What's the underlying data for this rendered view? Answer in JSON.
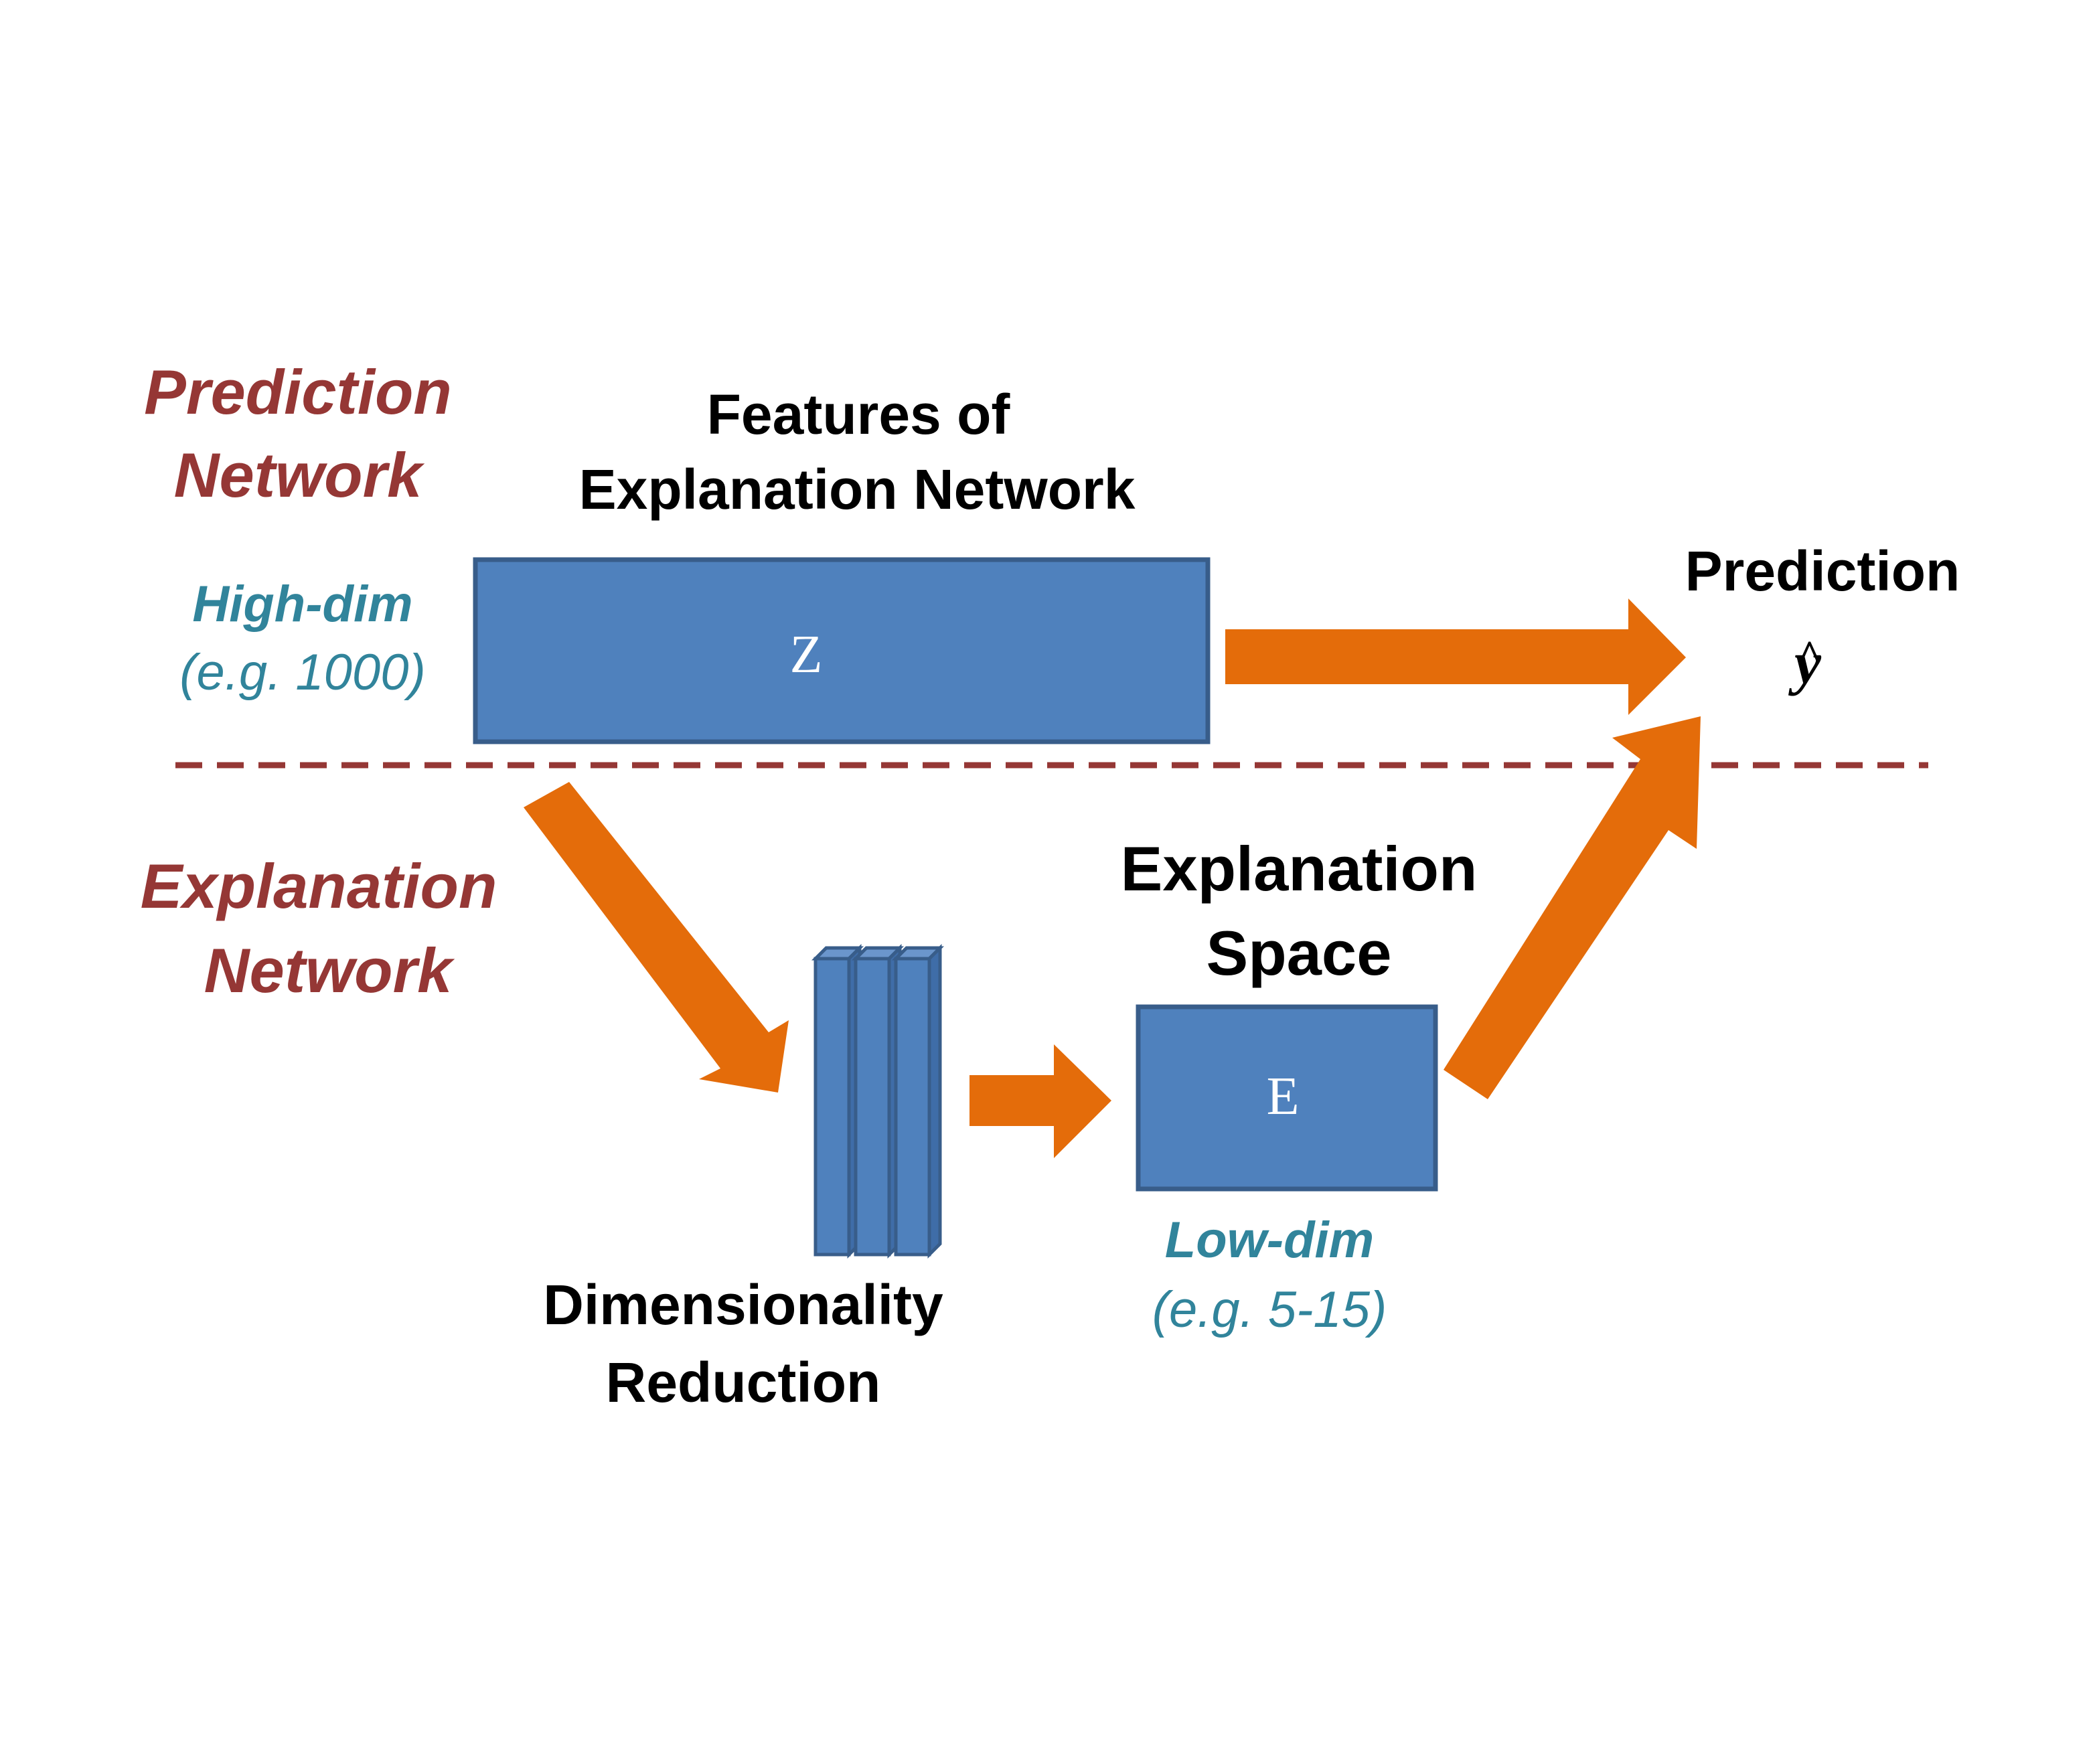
{
  "colors": {
    "section_label": "#953735",
    "dim_label": "#31849B",
    "box_fill": "#4F81BD",
    "box_stroke": "#385D8A",
    "arrow": "#E46C0A",
    "divider": "#953735",
    "text": "#000000"
  },
  "sections": {
    "prediction": {
      "line1": "Prediction",
      "line2": "Network"
    },
    "explanation": {
      "line1": "Explanation",
      "line2": "Network"
    }
  },
  "features": {
    "title_line1": "Features of",
    "title_line2": "Explanation Network",
    "box_label": "Z",
    "dim_label": "High-dim",
    "dim_example": "(e.g. 1000)"
  },
  "prediction_output": {
    "title": "Prediction",
    "symbol": "y",
    "symbol_accent": "^"
  },
  "reduction": {
    "label_line1": "Dimensionality",
    "label_line2": "Reduction"
  },
  "explanation_space": {
    "title_line1": "Explanation",
    "title_line2": "Space",
    "box_label": "E",
    "dim_label": "Low-dim",
    "dim_example": "(e.g. 5-15)"
  }
}
